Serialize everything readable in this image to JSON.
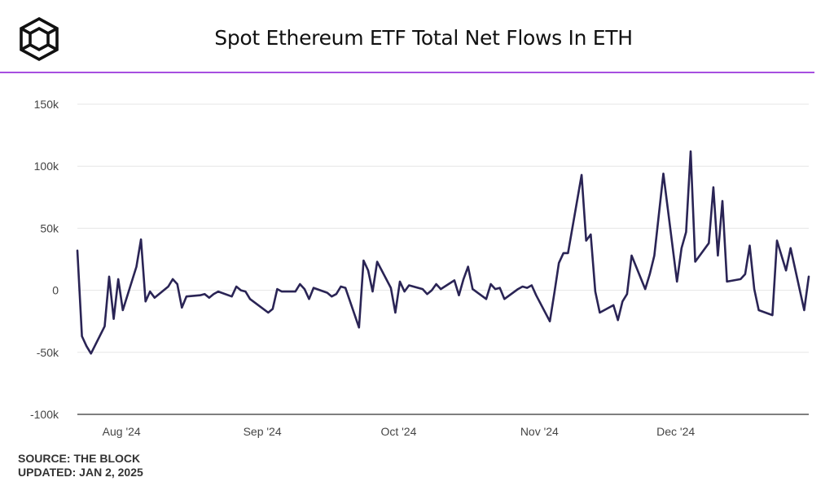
{
  "title": "Spot Ethereum ETF Total Net Flows In ETH",
  "footer": {
    "source": "SOURCE: THE BLOCK",
    "updated": "UPDATED: JAN 2, 2025"
  },
  "colors": {
    "line": "#2a2455",
    "accent": "#a64fe0",
    "grid": "#e6e6e6",
    "axis": "#333333",
    "tick_text": "#444444"
  },
  "icons": {
    "logo": "the-block-cube-logo"
  },
  "chart_data": {
    "type": "line",
    "title": "Spot Ethereum ETF Total Net Flows In ETH",
    "xlabel": "",
    "ylabel": "",
    "grid": true,
    "legend": "none",
    "ylim": [
      -100000,
      150000
    ],
    "y_ticks": [
      -100000,
      -50000,
      0,
      50000,
      100000,
      150000
    ],
    "y_tick_labels": [
      "-100k",
      "-50k",
      "0",
      "50k",
      "100k",
      "150k"
    ],
    "xlim": [
      "2024-07-23",
      "2024-12-31"
    ],
    "x_ticks": [
      "2024-08-01",
      "2024-09-01",
      "2024-10-01",
      "2024-11-01",
      "2024-12-01"
    ],
    "x_tick_labels": [
      "Aug '24",
      "Sep '24",
      "Oct '24",
      "Nov '24",
      "Dec '24"
    ],
    "series": [
      {
        "name": "",
        "x": [
          "2024-07-23",
          "2024-07-24",
          "2024-07-25",
          "2024-07-26",
          "2024-07-29",
          "2024-07-30",
          "2024-07-31",
          "2024-08-01",
          "2024-08-02",
          "2024-08-05",
          "2024-08-06",
          "2024-08-07",
          "2024-08-08",
          "2024-08-09",
          "2024-08-12",
          "2024-08-13",
          "2024-08-14",
          "2024-08-15",
          "2024-08-16",
          "2024-08-19",
          "2024-08-20",
          "2024-08-21",
          "2024-08-22",
          "2024-08-23",
          "2024-08-26",
          "2024-08-27",
          "2024-08-28",
          "2024-08-29",
          "2024-08-30",
          "2024-09-03",
          "2024-09-04",
          "2024-09-05",
          "2024-09-06",
          "2024-09-09",
          "2024-09-10",
          "2024-09-11",
          "2024-09-12",
          "2024-09-13",
          "2024-09-16",
          "2024-09-17",
          "2024-09-18",
          "2024-09-19",
          "2024-09-20",
          "2024-09-23",
          "2024-09-24",
          "2024-09-25",
          "2024-09-26",
          "2024-09-27",
          "2024-09-30",
          "2024-10-01",
          "2024-10-02",
          "2024-10-03",
          "2024-10-04",
          "2024-10-07",
          "2024-10-08",
          "2024-10-09",
          "2024-10-10",
          "2024-10-11",
          "2024-10-14",
          "2024-10-15",
          "2024-10-16",
          "2024-10-17",
          "2024-10-18",
          "2024-10-21",
          "2024-10-22",
          "2024-10-23",
          "2024-10-24",
          "2024-10-25",
          "2024-10-28",
          "2024-10-29",
          "2024-10-30",
          "2024-10-31",
          "2024-11-01",
          "2024-11-04",
          "2024-11-05",
          "2024-11-06",
          "2024-11-07",
          "2024-11-08",
          "2024-11-11",
          "2024-11-12",
          "2024-11-13",
          "2024-11-14",
          "2024-11-15",
          "2024-11-18",
          "2024-11-19",
          "2024-11-20",
          "2024-11-21",
          "2024-11-22",
          "2024-11-25",
          "2024-11-26",
          "2024-11-27",
          "2024-11-29",
          "2024-12-02",
          "2024-12-03",
          "2024-12-04",
          "2024-12-05",
          "2024-12-06",
          "2024-12-09",
          "2024-12-10",
          "2024-12-11",
          "2024-12-12",
          "2024-12-13",
          "2024-12-16",
          "2024-12-17",
          "2024-12-18",
          "2024-12-19",
          "2024-12-20",
          "2024-12-23",
          "2024-12-24",
          "2024-12-26",
          "2024-12-27",
          "2024-12-30",
          "2024-12-31"
        ],
        "values": [
          32000,
          -37000,
          -45000,
          -51000,
          -29000,
          11000,
          -23000,
          9000,
          -16000,
          19000,
          41000,
          -9000,
          -1000,
          -6000,
          3000,
          9000,
          5000,
          -14000,
          -5000,
          -4000,
          -3000,
          -6000,
          -3000,
          -1000,
          -5000,
          3000,
          0,
          -1000,
          -7000,
          -18000,
          -15000,
          1000,
          -1000,
          -1000,
          5000,
          1000,
          -7000,
          2000,
          -2000,
          -5000,
          -3000,
          3000,
          2000,
          -30000,
          24000,
          16000,
          -1000,
          23000,
          2000,
          -18000,
          7000,
          -1000,
          4000,
          1000,
          -3000,
          0,
          5000,
          1000,
          8000,
          -4000,
          9000,
          19000,
          1000,
          -7000,
          5000,
          1000,
          2000,
          -7000,
          1000,
          3000,
          2000,
          4000,
          -4000,
          -25000,
          -2000,
          22000,
          30000,
          30000,
          93000,
          40000,
          45000,
          -1000,
          -18000,
          -12000,
          -24000,
          -9000,
          -3000,
          28000,
          1000,
          13000,
          28000,
          94000,
          7000,
          34000,
          47000,
          112000,
          23000,
          38000,
          83000,
          28000,
          72000,
          7000,
          9000,
          13000,
          36000,
          1000,
          -16000,
          -20000,
          40000,
          16000,
          34000,
          -16000,
          11000
        ]
      }
    ]
  }
}
